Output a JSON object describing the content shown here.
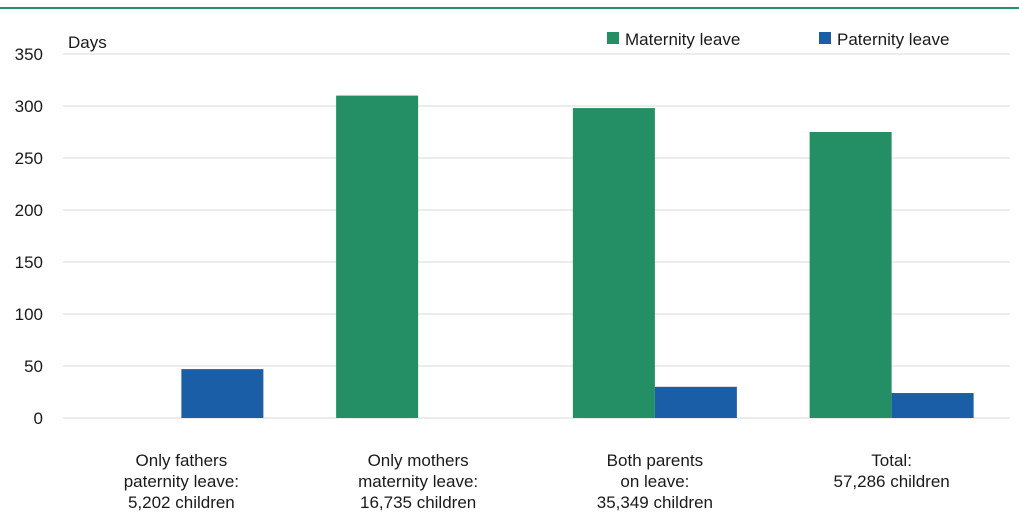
{
  "chart_data": {
    "type": "bar",
    "ylabel": "Days",
    "ylim": [
      0,
      350
    ],
    "yticks": [
      0,
      50,
      100,
      150,
      200,
      250,
      300,
      350
    ],
    "grid": true,
    "legend_position": "top-right",
    "categories": [
      [
        "Only fathers",
        "paternity leave:",
        "5,202 children"
      ],
      [
        "Only mothers",
        "maternity leave:",
        "16,735 children"
      ],
      [
        "Both parents",
        "on leave:",
        "35,349 children"
      ],
      [
        "Total:",
        "57,286 children"
      ]
    ],
    "series": [
      {
        "name": "Maternity leave",
        "color": "#248f64",
        "values": [
          null,
          310,
          298,
          275
        ]
      },
      {
        "name": "Paternity leave",
        "color": "#1a5ea8",
        "values": [
          47,
          null,
          30,
          24
        ]
      }
    ]
  },
  "colors": {
    "top_rule": "#248f64",
    "grid": "#d9d9d9",
    "axis_text": "#1a1a1a"
  }
}
